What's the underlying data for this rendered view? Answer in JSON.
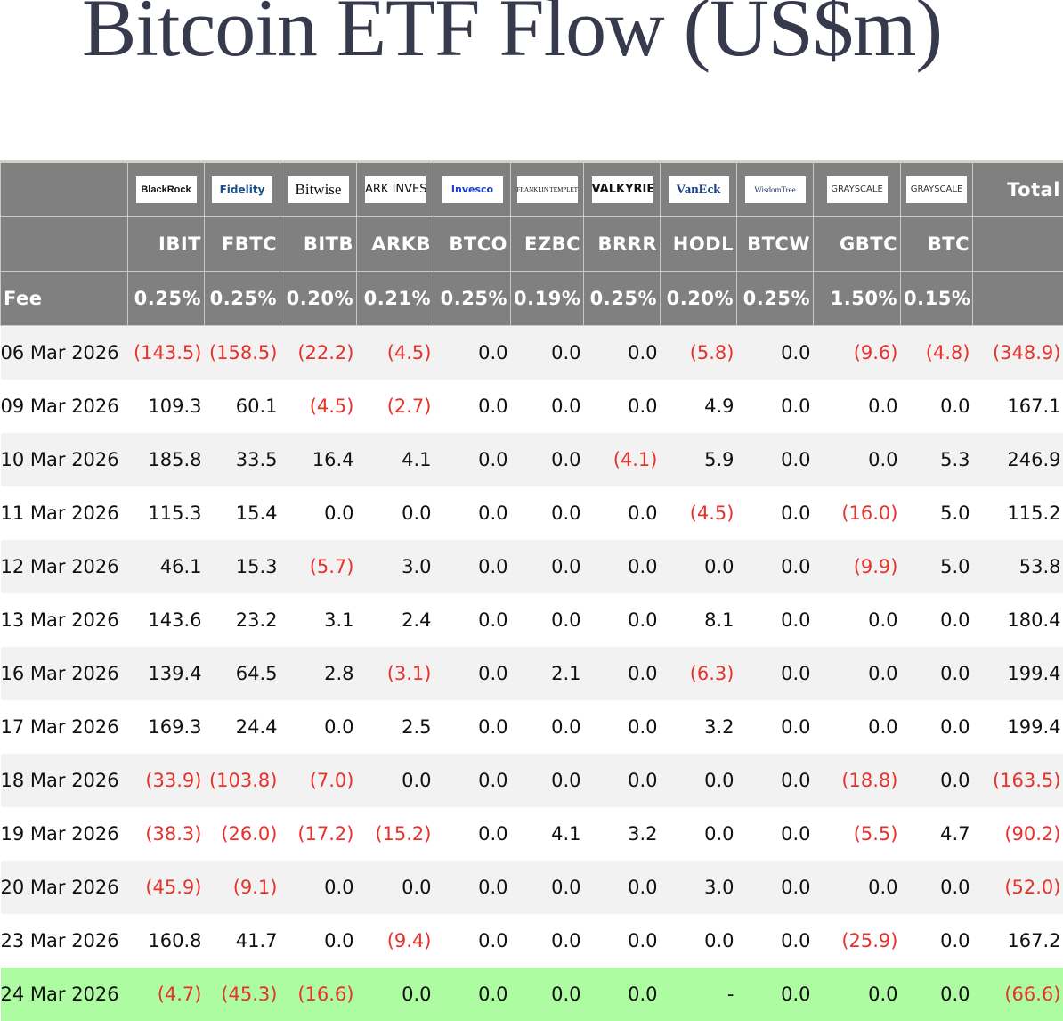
{
  "title": "Bitcoin ETF Flow (US$m)",
  "colors": {
    "header_bg": "#808080",
    "negative": "#e8312b",
    "latest_row": "#adfca1"
  },
  "issuers": [
    {
      "logo": "BlackRock",
      "ticker": "IBIT",
      "fee": "0.25%"
    },
    {
      "logo": "Fidelity",
      "ticker": "FBTC",
      "fee": "0.25%"
    },
    {
      "logo": "Bitwise",
      "ticker": "BITB",
      "fee": "0.20%"
    },
    {
      "logo": "ARK INVEST",
      "ticker": "ARKB",
      "fee": "0.21%"
    },
    {
      "logo": "Invesco",
      "ticker": "BTCO",
      "fee": "0.25%"
    },
    {
      "logo": "FRANKLIN TEMPLETON",
      "ticker": "EZBC",
      "fee": "0.19%"
    },
    {
      "logo": "VALKYRIE",
      "ticker": "BRRR",
      "fee": "0.25%"
    },
    {
      "logo": "VanEck",
      "ticker": "HODL",
      "fee": "0.20%"
    },
    {
      "logo": "WisdomTree",
      "ticker": "BTCW",
      "fee": "0.25%"
    },
    {
      "logo": "GRAYSCALE",
      "ticker": "GBTC",
      "fee": "1.50%"
    },
    {
      "logo": "GRAYSCALE",
      "ticker": "BTC",
      "fee": "0.15%"
    }
  ],
  "total_label": "Total",
  "fee_label": "Fee",
  "rows": [
    {
      "date": "06 Mar 2026",
      "values": [
        "(143.5)",
        "(158.5)",
        "(22.2)",
        "(4.5)",
        "0.0",
        "0.0",
        "0.0",
        "(5.8)",
        "0.0",
        "(9.6)",
        "(4.8)",
        "(348.9)"
      ]
    },
    {
      "date": "09 Mar 2026",
      "values": [
        "109.3",
        "60.1",
        "(4.5)",
        "(2.7)",
        "0.0",
        "0.0",
        "0.0",
        "4.9",
        "0.0",
        "0.0",
        "0.0",
        "167.1"
      ]
    },
    {
      "date": "10 Mar 2026",
      "values": [
        "185.8",
        "33.5",
        "16.4",
        "4.1",
        "0.0",
        "0.0",
        "(4.1)",
        "5.9",
        "0.0",
        "0.0",
        "5.3",
        "246.9"
      ]
    },
    {
      "date": "11 Mar 2026",
      "values": [
        "115.3",
        "15.4",
        "0.0",
        "0.0",
        "0.0",
        "0.0",
        "0.0",
        "(4.5)",
        "0.0",
        "(16.0)",
        "5.0",
        "115.2"
      ]
    },
    {
      "date": "12 Mar 2026",
      "values": [
        "46.1",
        "15.3",
        "(5.7)",
        "3.0",
        "0.0",
        "0.0",
        "0.0",
        "0.0",
        "0.0",
        "(9.9)",
        "5.0",
        "53.8"
      ]
    },
    {
      "date": "13 Mar 2026",
      "values": [
        "143.6",
        "23.2",
        "3.1",
        "2.4",
        "0.0",
        "0.0",
        "0.0",
        "8.1",
        "0.0",
        "0.0",
        "0.0",
        "180.4"
      ]
    },
    {
      "date": "16 Mar 2026",
      "values": [
        "139.4",
        "64.5",
        "2.8",
        "(3.1)",
        "0.0",
        "2.1",
        "0.0",
        "(6.3)",
        "0.0",
        "0.0",
        "0.0",
        "199.4"
      ]
    },
    {
      "date": "17 Mar 2026",
      "values": [
        "169.3",
        "24.4",
        "0.0",
        "2.5",
        "0.0",
        "0.0",
        "0.0",
        "3.2",
        "0.0",
        "0.0",
        "0.0",
        "199.4"
      ]
    },
    {
      "date": "18 Mar 2026",
      "values": [
        "(33.9)",
        "(103.8)",
        "(7.0)",
        "0.0",
        "0.0",
        "0.0",
        "0.0",
        "0.0",
        "0.0",
        "(18.8)",
        "0.0",
        "(163.5)"
      ]
    },
    {
      "date": "19 Mar 2026",
      "values": [
        "(38.3)",
        "(26.0)",
        "(17.2)",
        "(15.2)",
        "0.0",
        "4.1",
        "3.2",
        "0.0",
        "0.0",
        "(5.5)",
        "4.7",
        "(90.2)"
      ]
    },
    {
      "date": "20 Mar 2026",
      "values": [
        "(45.9)",
        "(9.1)",
        "0.0",
        "0.0",
        "0.0",
        "0.0",
        "0.0",
        "3.0",
        "0.0",
        "0.0",
        "0.0",
        "(52.0)"
      ]
    },
    {
      "date": "23 Mar 2026",
      "values": [
        "160.8",
        "41.7",
        "0.0",
        "(9.4)",
        "0.0",
        "0.0",
        "0.0",
        "0.0",
        "0.0",
        "(25.9)",
        "0.0",
        "167.2"
      ]
    },
    {
      "date": "24 Mar 2026",
      "values": [
        "(4.7)",
        "(45.3)",
        "(16.6)",
        "0.0",
        "0.0",
        "0.0",
        "0.0",
        "-",
        "0.0",
        "0.0",
        "0.0",
        "(66.6)"
      ]
    }
  ]
}
